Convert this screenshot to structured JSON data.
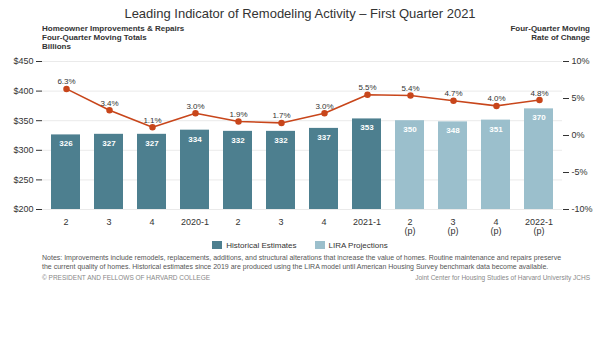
{
  "chart_data": {
    "type": "bar",
    "title": "Leading Indicator of Remodeling Activity – First Quarter 2021",
    "ylabel": "Homeowner Improvements & Repairs\nFour-Quarter Moving Totals\nBillions",
    "y2label": "Four-Quarter Moving\nRate of Change",
    "categories": [
      "2",
      "3",
      "4",
      "2020-1",
      "2",
      "3",
      "4",
      "2021-1",
      "2\n(p)",
      "3\n(p)",
      "4\n(p)",
      "2022-1\n(p)"
    ],
    "series": [
      {
        "name": "Historical Estimates",
        "type": "bar",
        "color": "#4d7f8f",
        "values": [
          326,
          327,
          327,
          334,
          332,
          332,
          337,
          353,
          null,
          null,
          null,
          null
        ]
      },
      {
        "name": "LIRA Projections",
        "type": "bar",
        "color": "#9bbfcc",
        "values": [
          null,
          null,
          null,
          null,
          null,
          null,
          null,
          null,
          350,
          348,
          351,
          370
        ]
      },
      {
        "type": "line",
        "axis": "y2",
        "color": "#c8461b",
        "marker": "circle",
        "values": [
          6.3,
          3.4,
          1.1,
          3.0,
          1.9,
          1.7,
          3.0,
          5.5,
          5.4,
          4.7,
          4.0,
          4.8
        ],
        "value_labels": [
          "6.3%",
          "3.4%",
          "1.1%",
          "3.0%",
          "1.9%",
          "1.7%",
          "3.0%",
          "5.5%",
          "5.4%",
          "4.7%",
          "4.0%",
          "4.8%"
        ]
      }
    ],
    "ylim": [
      200,
      450
    ],
    "yticks": [
      {
        "value": 200,
        "label": "$200"
      },
      {
        "value": 250,
        "label": "$250"
      },
      {
        "value": 300,
        "label": "$300"
      },
      {
        "value": 350,
        "label": "$350"
      },
      {
        "value": 400,
        "label": "$400"
      },
      {
        "value": 450,
        "label": "$450"
      }
    ],
    "y2lim": [
      -10,
      10
    ],
    "y2ticks": [
      {
        "value": -10,
        "label": "-10%"
      },
      {
        "value": -5,
        "label": "-5%"
      },
      {
        "value": 0,
        "label": "0%"
      },
      {
        "value": 5,
        "label": "5%"
      },
      {
        "value": 10,
        "label": "10%"
      }
    ],
    "grid": true,
    "data_labels": true,
    "legend": "bottom",
    "annotations": [
      "Notes: Improvements include remodels, replacements, additions, and structural alterations that increase the value of homes. Routine maintenance and repairs preserve\nthe current quality of homes. Historical estimates since 2019 are produced using the LIRA model until American Housing Survey benchmark data become available.",
      "© PRESIDENT AND FELLOWS OF HARVARD COLLEGE",
      "Joint Center for Housing Studies of Harvard University  JCHS"
    ]
  }
}
